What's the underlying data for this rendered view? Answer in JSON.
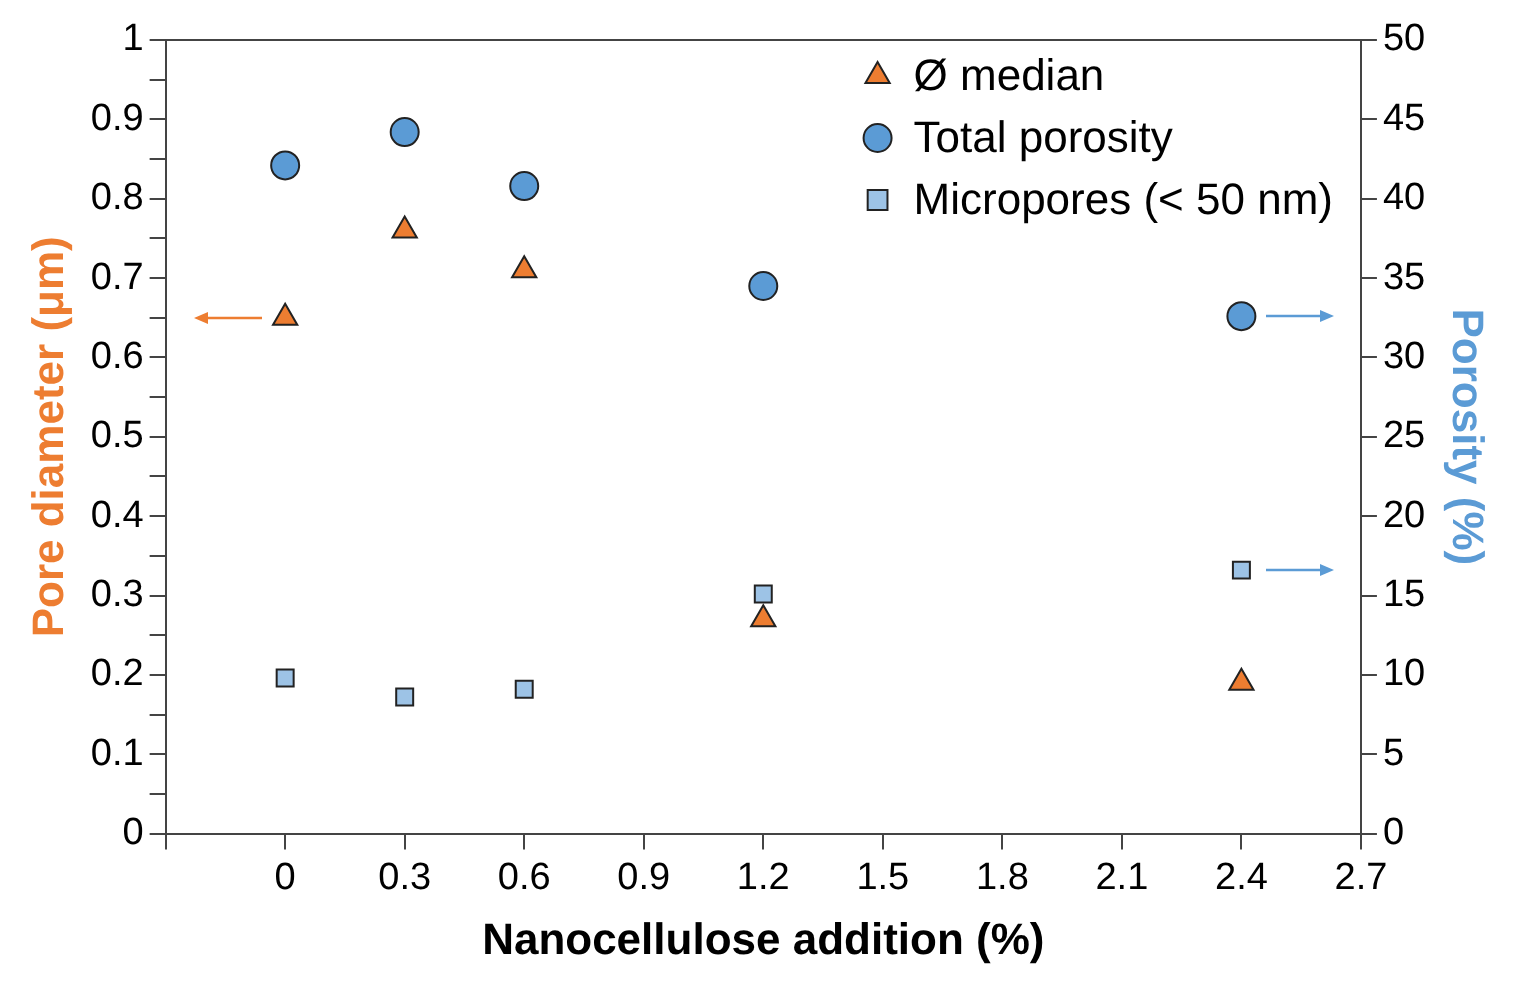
{
  "chart_data": {
    "type": "scatter",
    "xlabel": "Nanocellulose addition (%)",
    "ylabel": "Pore diameter (μm)",
    "y2label": "Porosity (%)",
    "x": [
      0,
      0.3,
      0.6,
      1.2,
      2.4
    ],
    "series": [
      {
        "name": "Ø median",
        "color": "#ed7d31",
        "marker": "triangle",
        "values": [
          0.65,
          0.76,
          0.71,
          0.27,
          0.19
        ]
      },
      {
        "name": "Total porosity",
        "color": "#5b9bd5",
        "marker": "circle",
        "axis": "y2",
        "values": [
          42.1,
          44.2,
          40.8,
          34.5,
          32.6
        ]
      },
      {
        "name": "Micropores (< 50 nm)",
        "color": "#9dc3e6",
        "marker": "square",
        "axis": "y2",
        "values": [
          9.8,
          8.6,
          9.1,
          15.1,
          16.6
        ]
      }
    ],
    "xlim": [
      -0.3,
      2.7
    ],
    "xticks": [
      {
        "value": -0.3,
        "label": null
      },
      0,
      0.3,
      0.6,
      0.9,
      1.2,
      1.5,
      1.8,
      2.1,
      2.4,
      2.7
    ],
    "ylim": [
      0,
      1
    ],
    "yticks": [
      0,
      {
        "value": 0.05,
        "label": null
      },
      0.1,
      {
        "value": 0.15,
        "label": null
      },
      0.2,
      {
        "value": 0.25,
        "label": null
      },
      0.3,
      {
        "value": 0.35,
        "label": null
      },
      0.4,
      {
        "value": 0.45,
        "label": null
      },
      0.5,
      {
        "value": 0.55,
        "label": null
      },
      0.6,
      {
        "value": 0.65,
        "label": null
      },
      0.7,
      {
        "value": 0.75,
        "label": null
      },
      0.8,
      {
        "value": 0.85,
        "label": null
      },
      0.9,
      {
        "value": 0.95,
        "label": null
      },
      1
    ],
    "y2lim": [
      0,
      50
    ],
    "y2ticks": [
      0,
      5,
      10,
      15,
      20,
      25,
      30,
      35,
      40,
      45,
      50
    ],
    "grid": false,
    "legend": "top right"
  }
}
